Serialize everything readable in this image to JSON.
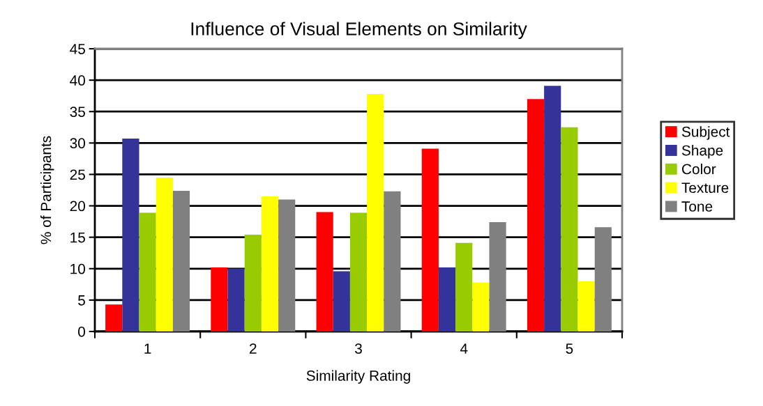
{
  "chart_data": {
    "type": "bar",
    "title": "Influence of Visual Elements on Similarity",
    "xlabel": "Similarity Rating",
    "ylabel": "% of Participants",
    "categories": [
      "1",
      "2",
      "3",
      "4",
      "5"
    ],
    "series": [
      {
        "name": "Subject",
        "color": "#ff0000",
        "values": [
          4.3,
          10.2,
          19.0,
          29.1,
          37.0
        ]
      },
      {
        "name": "Shape",
        "color": "#333399",
        "values": [
          30.7,
          10.0,
          9.6,
          10.2,
          39.1
        ]
      },
      {
        "name": "Color",
        "color": "#99cc00",
        "values": [
          18.9,
          15.4,
          18.9,
          14.1,
          32.5
        ]
      },
      {
        "name": "Texture",
        "color": "#ffff00",
        "values": [
          24.5,
          21.5,
          37.8,
          7.8,
          8.0
        ]
      },
      {
        "name": "Tone",
        "color": "#808080",
        "values": [
          22.4,
          21.0,
          22.3,
          17.4,
          16.6
        ]
      }
    ],
    "ylim": [
      0,
      45
    ],
    "yticks": [
      0,
      5,
      10,
      15,
      20,
      25,
      30,
      35,
      40,
      45
    ],
    "grid": "y",
    "legend": "right"
  }
}
